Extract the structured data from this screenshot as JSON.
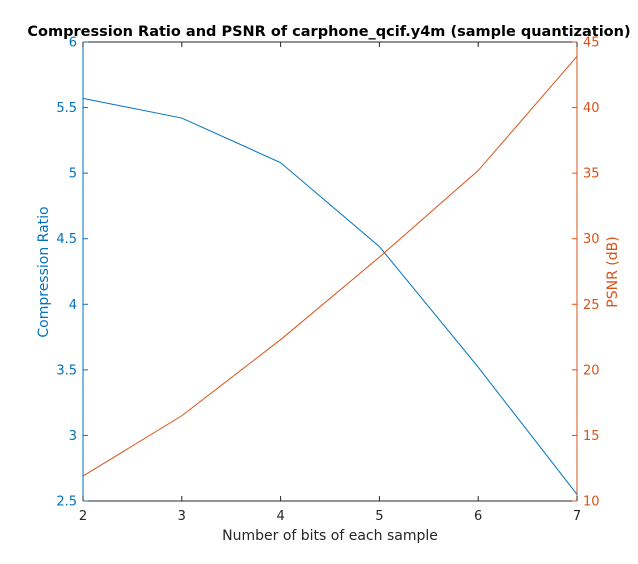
{
  "chart_data": {
    "type": "line",
    "title": "Compression Ratio and PSNR of carphone_qcif.y4m (sample quantization)",
    "xlabel": "Number of bits of each sample",
    "x": [
      2,
      3,
      4,
      5,
      6,
      7
    ],
    "xlim": [
      2,
      7
    ],
    "xticks": [
      "2",
      "3",
      "4",
      "5",
      "6",
      "7"
    ],
    "y_left": {
      "label": "Compression Ratio",
      "color": "#0072BD",
      "ylim": [
        2.5,
        6
      ],
      "ticks": [
        "2.5",
        "3",
        "3.5",
        "4",
        "4.5",
        "5",
        "5.5",
        "6"
      ],
      "values": [
        5.57,
        5.42,
        5.08,
        4.44,
        3.52,
        2.55
      ]
    },
    "y_right": {
      "label": "PSNR (dB)",
      "color": "#D95319",
      "ylim": [
        10,
        45
      ],
      "ticks": [
        "10",
        "15",
        "20",
        "25",
        "30",
        "35",
        "40",
        "45"
      ],
      "values": [
        11.9,
        16.5,
        22.3,
        28.6,
        35.2,
        43.9
      ]
    },
    "grid": false,
    "legend": "none"
  }
}
